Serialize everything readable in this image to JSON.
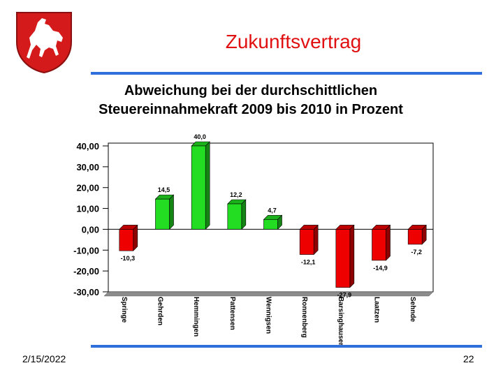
{
  "slide": {
    "title": "Zukunftsvertrag",
    "date": "2/15/2022",
    "page_number": "22",
    "logo": "lower-saxony-horse-coat-of-arms",
    "accent_color": "#2f6fdb",
    "title_color": "#e11010"
  },
  "chart_data": {
    "type": "bar",
    "title_lines": [
      "Abweichung bei der durchschittlichen",
      "Steuereinnahmekraft 2009 bis 2010 in Prozent"
    ],
    "categories": [
      "Springe",
      "Gehrden",
      "Hemmingen",
      "Pattensen",
      "Wennigsen",
      "Ronnenberg",
      "Barsinghausen",
      "Laatzen",
      "Sehnde"
    ],
    "values": [
      -10.3,
      14.5,
      40.0,
      12.2,
      4.7,
      -12.1,
      -27.9,
      -14.9,
      -7.2
    ],
    "data_labels": [
      "-10,3",
      "14,5",
      "40,0",
      "12,2",
      "4,7",
      "-12,1",
      "-27,9",
      "-14,9",
      "-7,2"
    ],
    "y_ticks": [
      40,
      30,
      20,
      10,
      0,
      -10,
      -20,
      -30
    ],
    "y_tick_labels": [
      "40,00",
      "30,00",
      "20,00",
      "10,00",
      "0,00",
      "-10,00",
      "-20,00",
      "-30,00"
    ],
    "ylim": [
      -30,
      40
    ],
    "positive_color": "#22dd22",
    "negative_color": "#ee0000",
    "grid": false,
    "legend": "none"
  }
}
